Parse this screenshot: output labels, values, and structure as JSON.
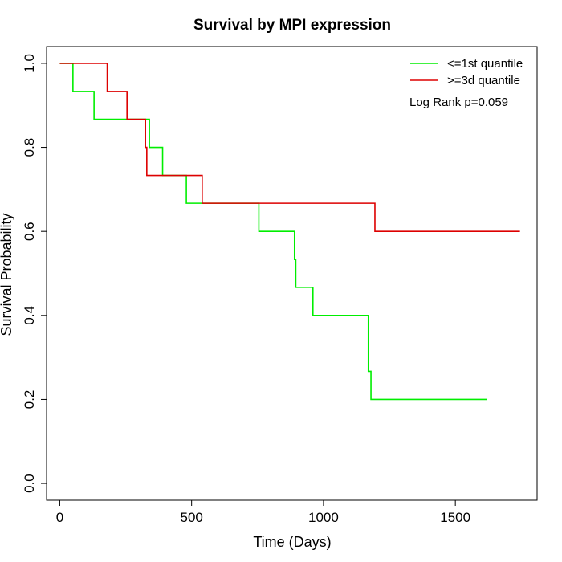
{
  "chart_data": {
    "type": "line",
    "title": "Survival by MPI expression",
    "xlabel": "Time (Days)",
    "ylabel": "Survival Probability",
    "xlim": [
      -50,
      1810
    ],
    "ylim": [
      -0.04,
      1.04
    ],
    "x_ticks": [
      0,
      500,
      1000,
      1500
    ],
    "y_ticks": [
      0.0,
      0.2,
      0.4,
      0.6,
      0.8,
      1.0
    ],
    "x_tick_labels": [
      "0",
      "500",
      "1000",
      "1500"
    ],
    "y_tick_labels": [
      "0.0",
      "0.2",
      "0.4",
      "0.6",
      "0.8",
      "1.0"
    ],
    "grid": false,
    "legend_position": "top-right",
    "annotation": "Log Rank p=0.059",
    "series": [
      {
        "name": "<=1st quantile",
        "color": "#00ee00",
        "step_points": [
          [
            0,
            1.0
          ],
          [
            50,
            0.933
          ],
          [
            130,
            0.867
          ],
          [
            340,
            0.8
          ],
          [
            390,
            0.733
          ],
          [
            480,
            0.667
          ],
          [
            755,
            0.6
          ],
          [
            890,
            0.533
          ],
          [
            895,
            0.467
          ],
          [
            960,
            0.4
          ],
          [
            1170,
            0.267
          ],
          [
            1180,
            0.2
          ],
          [
            1620,
            0.2
          ]
        ]
      },
      {
        "name": ">=3d quantile",
        "color": "#dd0000",
        "step_points": [
          [
            0,
            1.0
          ],
          [
            180,
            0.933
          ],
          [
            255,
            0.867
          ],
          [
            325,
            0.8
          ],
          [
            330,
            0.733
          ],
          [
            540,
            0.667
          ],
          [
            1195,
            0.6
          ],
          [
            1745,
            0.6
          ]
        ]
      }
    ]
  }
}
